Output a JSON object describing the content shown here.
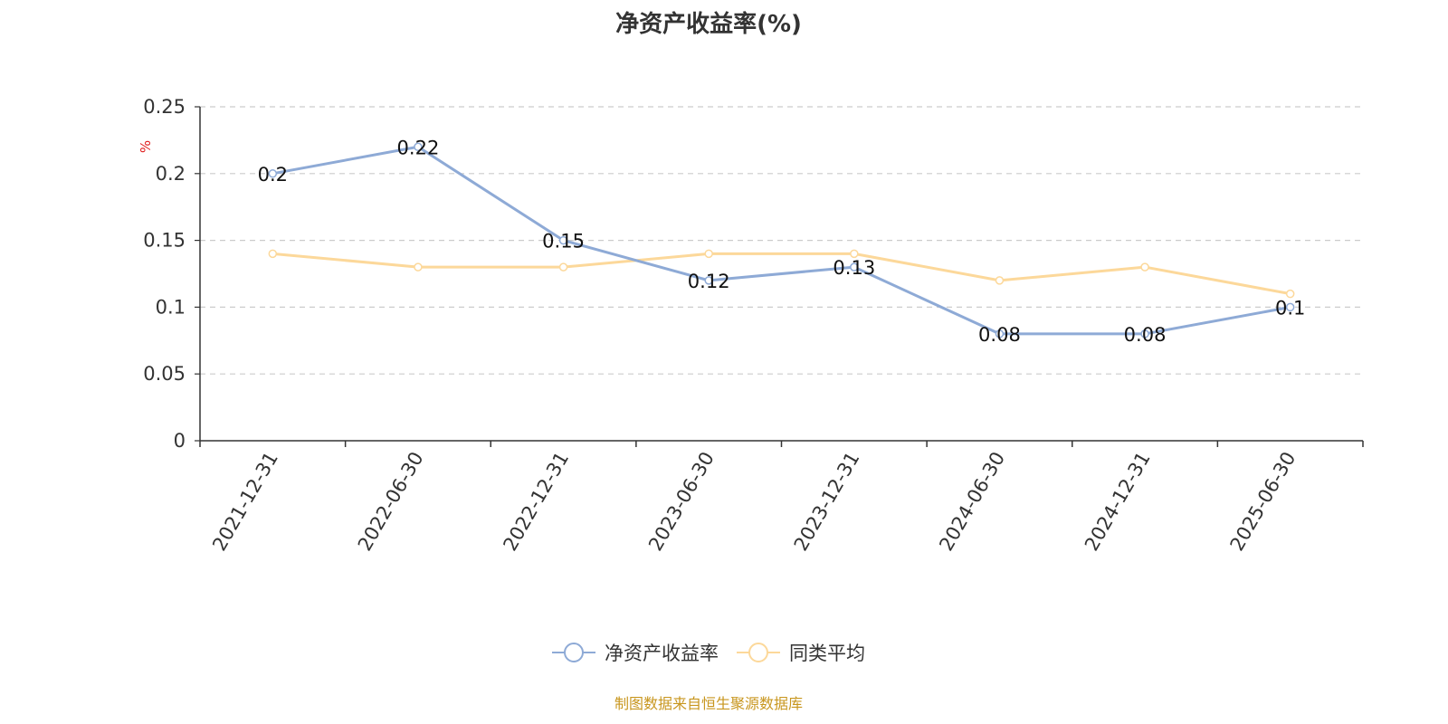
{
  "chart_data": {
    "type": "line",
    "title": "净资产收益率(%)",
    "ylabel": "%",
    "categories": [
      "2021-12-31",
      "2022-06-30",
      "2022-12-31",
      "2023-06-30",
      "2023-12-31",
      "2024-06-30",
      "2024-12-31",
      "2025-06-30"
    ],
    "ylim": [
      0,
      0.25
    ],
    "yticks": [
      "0",
      "0.05",
      "0.1",
      "0.15",
      "0.2",
      "0.25"
    ],
    "grid": true,
    "legend_position": "bottom",
    "series": [
      {
        "name": "净资产收益率",
        "color": "#8eaad6",
        "values": [
          0.2,
          0.22,
          0.15,
          0.12,
          0.13,
          0.08,
          0.08,
          0.1
        ],
        "labels": [
          "0.2",
          "0.22",
          "0.15",
          "0.12",
          "0.13",
          "0.08",
          "0.08",
          "0.1"
        ]
      },
      {
        "name": "同类平均",
        "color": "#fcd89a",
        "values": [
          0.14,
          0.13,
          0.13,
          0.14,
          0.14,
          0.12,
          0.13,
          0.11
        ]
      }
    ]
  },
  "source_text": "制图数据来自恒生聚源数据库"
}
